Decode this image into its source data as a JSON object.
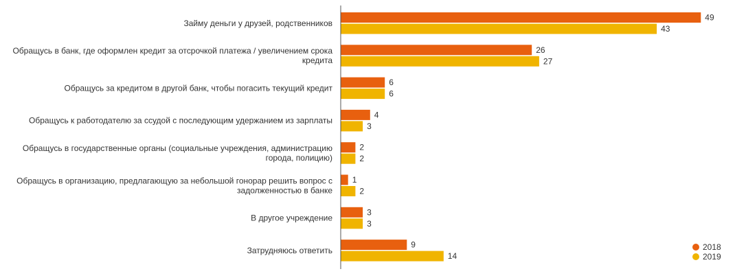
{
  "chart_data": {
    "type": "bar",
    "orientation": "horizontal",
    "categories": [
      [
        "Займу деньги у друзей, родственников"
      ],
      [
        "Обращусь в банк, где оформлен кредит за отсрочкой платежа / увеличением срока",
        "кредита"
      ],
      [
        "Обращусь за кредитом в другой банк, чтобы погасить текущий кредит"
      ],
      [
        "Обращусь к работодателю за ссудой с последующим удержанием из зарплаты"
      ],
      [
        "Обращусь в государственные органы (социальные учреждения, администрацию",
        "города, полицию)"
      ],
      [
        "Обращусь в организацию, предлагающую за небольшой гонорар решить вопрос с",
        "задолженностью в банке"
      ],
      [
        "В другое учреждение"
      ],
      [
        "Затрудняюсь ответить"
      ]
    ],
    "series": [
      {
        "name": "2018",
        "color": "#e8600f",
        "values": [
          49,
          26,
          6,
          4,
          2,
          1,
          3,
          9
        ]
      },
      {
        "name": "2019",
        "color": "#f0b400",
        "values": [
          43,
          27,
          6,
          3,
          2,
          2,
          3,
          14
        ]
      }
    ],
    "xlim": [
      0,
      50
    ],
    "grid": false,
    "data_labels": true,
    "legend_position": "bottom-right"
  }
}
